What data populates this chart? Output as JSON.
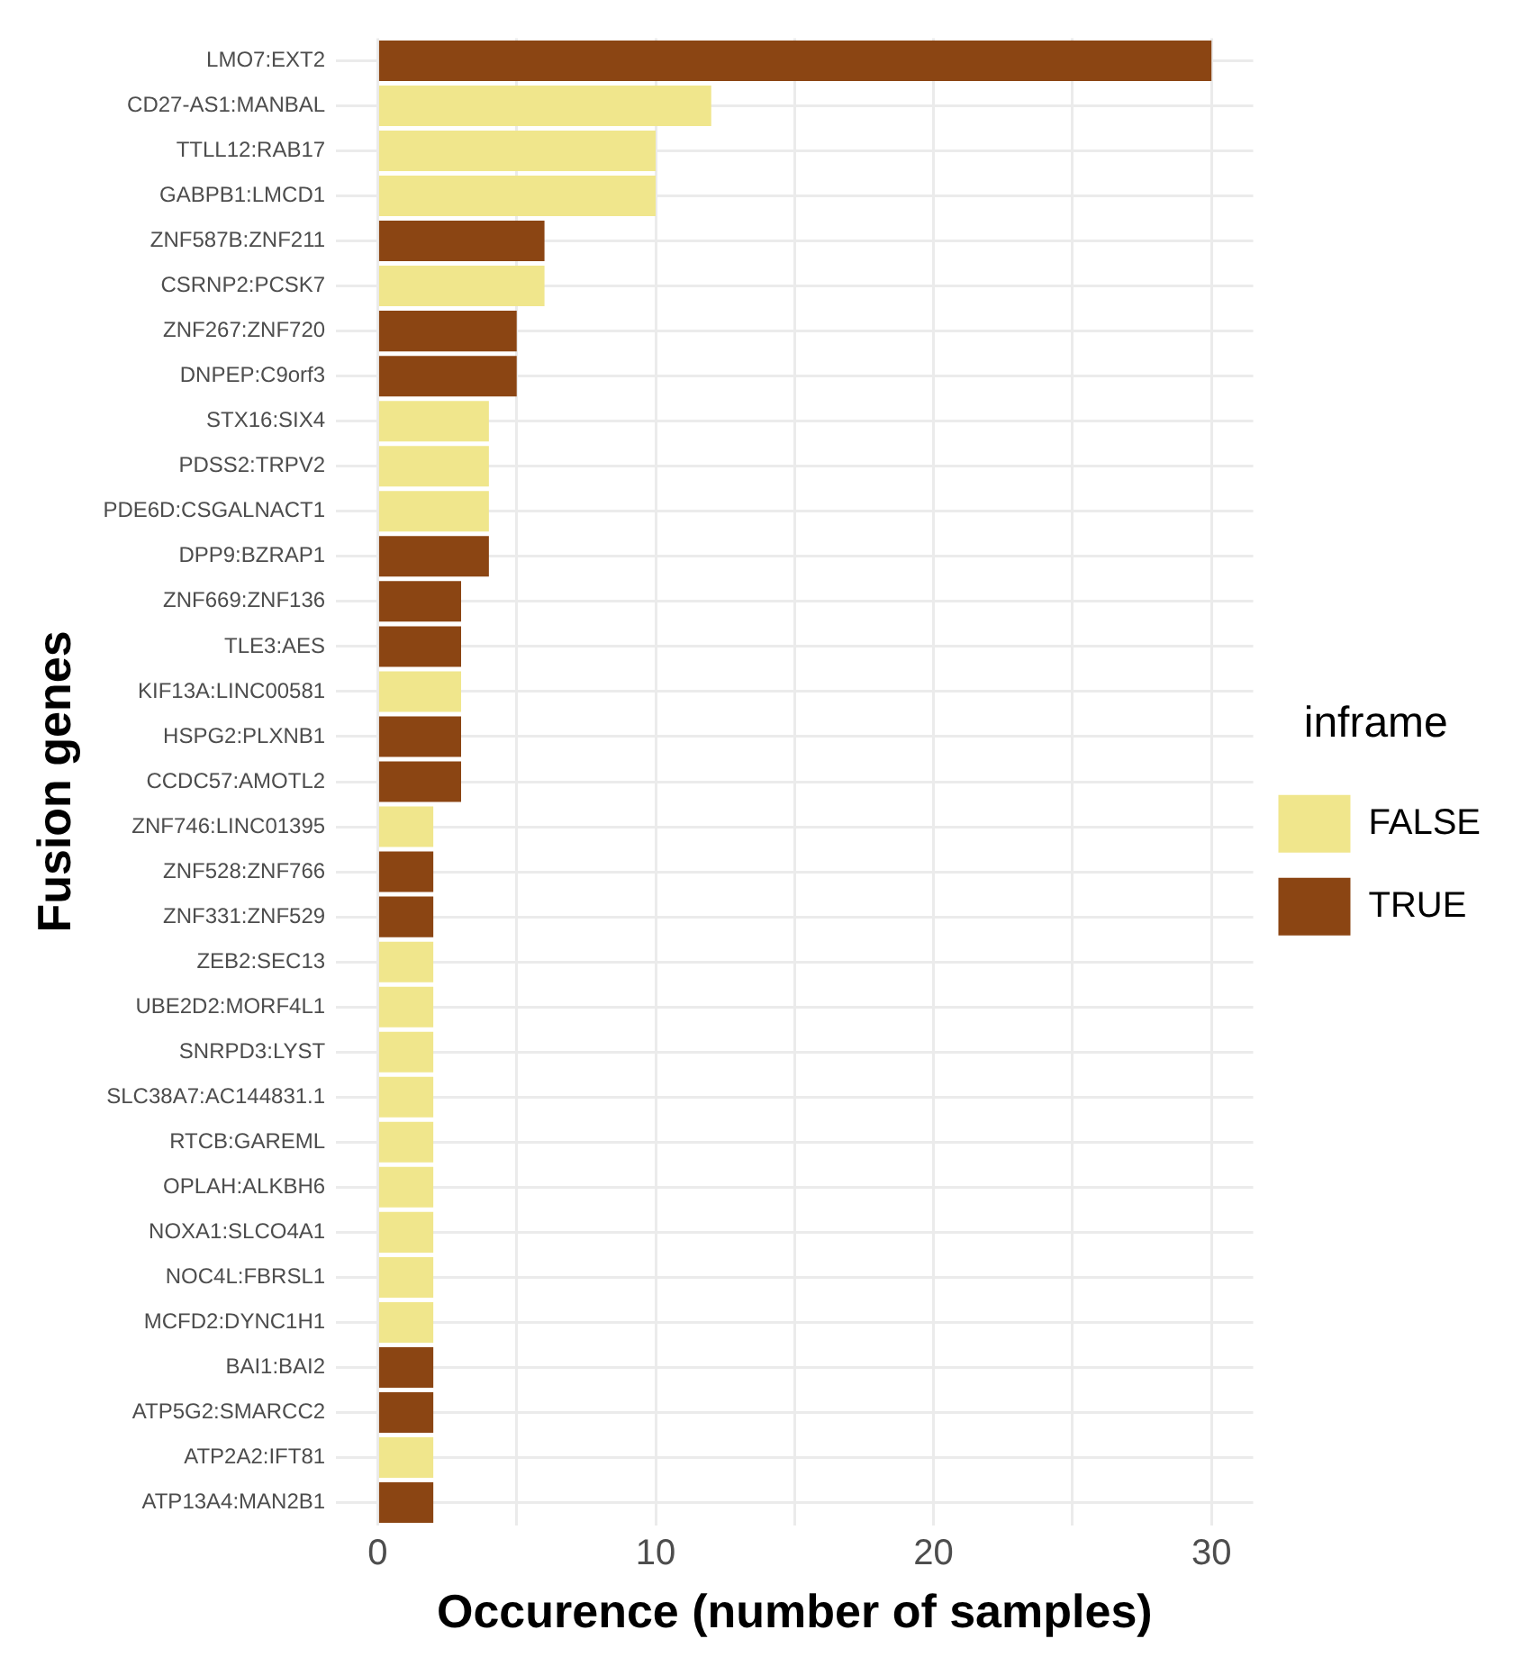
{
  "chart_data": {
    "type": "bar",
    "orientation": "horizontal",
    "stacked": true,
    "xlabel": "Occurence (number of samples)",
    "ylabel": "Fusion genes",
    "legend_title": "inframe",
    "legend": "right",
    "grid": true,
    "categories": [
      "LMO7:EXT2",
      "CD27-AS1:MANBAL",
      "TTLL12:RAB17",
      "GABPB1:LMCD1",
      "ZNF587B:ZNF211",
      "CSRNP2:PCSK7",
      "ZNF267:ZNF720",
      "DNPEP:C9orf3",
      "STX16:SIX4",
      "PDSS2:TRPV2",
      "PDE6D:CSGALNACT1",
      "DPP9:BZRAP1",
      "ZNF669:ZNF136",
      "TLE3:AES",
      "KIF13A:LINC00581",
      "HSPG2:PLXNB1",
      "CCDC57:AMOTL2",
      "ZNF746:LINC01395",
      "ZNF528:ZNF766",
      "ZNF331:ZNF529",
      "ZEB2:SEC13",
      "UBE2D2:MORF4L1",
      "SNRPD3:LYST",
      "SLC38A7:AC144831.1",
      "RTCB:GAREML",
      "OPLAH:ALKBH6",
      "NOXA1:SLCO4A1",
      "NOC4L:FBRSL1",
      "MCFD2:DYNC1H1",
      "BAI1:BAI2",
      "ATP5G2:SMARCC2",
      "ATP2A2:IFT81",
      "ATP13A4:MAN2B1"
    ],
    "series": [
      {
        "name": "FALSE",
        "color": "#f0e68c",
        "values": [
          null,
          12,
          10,
          10,
          null,
          6,
          null,
          null,
          4,
          4,
          4,
          null,
          null,
          null,
          3,
          null,
          null,
          2,
          null,
          null,
          2,
          2,
          2,
          2,
          2,
          2,
          2,
          2,
          2,
          null,
          null,
          2,
          null
        ]
      },
      {
        "name": "TRUE",
        "color": "#8b4513",
        "values": [
          30,
          null,
          null,
          null,
          6,
          null,
          5,
          5,
          null,
          null,
          null,
          4,
          3,
          3,
          null,
          3,
          3,
          null,
          2,
          2,
          null,
          null,
          null,
          null,
          null,
          null,
          null,
          null,
          null,
          2,
          2,
          null,
          2
        ]
      }
    ],
    "xlim": [
      -1.5,
      31.5
    ],
    "xticks": [
      0,
      {
        "value": 5,
        "label": null
      },
      10,
      {
        "value": 15,
        "label": null
      },
      20,
      {
        "value": 25,
        "label": null
      },
      30
    ]
  }
}
